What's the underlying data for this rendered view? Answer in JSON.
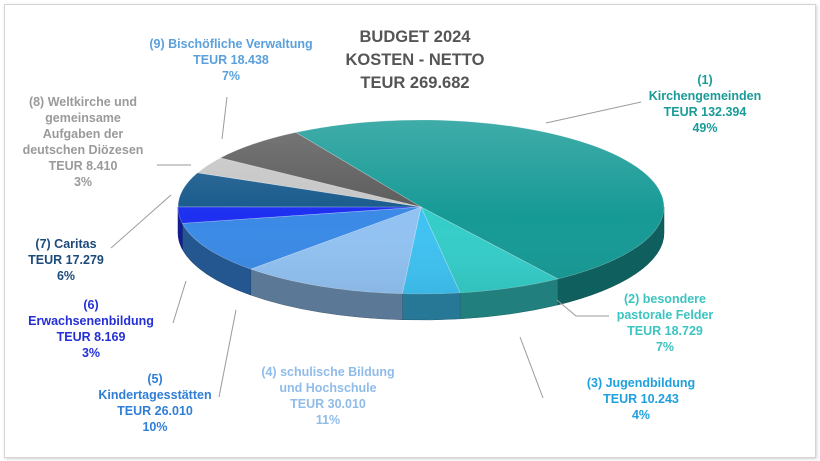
{
  "chart_data": {
    "type": "pie",
    "title_lines": [
      "BUDGET 2024",
      "KOSTEN - NETTO",
      "TEUR  269.682"
    ],
    "slices": [
      {
        "name": "(1)\nKirchengemeinden",
        "value_text": "TEUR  132.394",
        "value": 132394,
        "percent": "49%",
        "color": "#169a96",
        "label_color": "#1a9b98"
      },
      {
        "name": "(2) besondere\npastorale Felder",
        "value_text": "TEUR  18.729",
        "value": 18729,
        "percent": "7%",
        "color": "#35cdc9",
        "label_color": "#3cc4c1"
      },
      {
        "name": "(3) Jugendbildung",
        "value_text": "TEUR  10.243",
        "value": 10243,
        "percent": "4%",
        "color": "#3fc2f2",
        "label_color": "#1fa0de"
      },
      {
        "name": "(4) schulische Bildung\nund Hochschule",
        "value_text": "TEUR  30.010",
        "value": 30010,
        "percent": "11%",
        "color": "#92c2f2",
        "label_color": "#8fbce9"
      },
      {
        "name": "(5)\nKindertagesstätten",
        "value_text": "TEUR  26.010",
        "value": 26010,
        "percent": "10%",
        "color": "#3a8ae6",
        "label_color": "#2f7fd8"
      },
      {
        "name": "(6)\nErwachsenenbildung",
        "value_text": "TEUR  8.169",
        "value": 8169,
        "percent": "3%",
        "color": "#1d2ff0",
        "label_color": "#2430d6"
      },
      {
        "name": "(7) Caritas",
        "value_text": "TEUR  17.279",
        "value": 17279,
        "percent": "6%",
        "color": "#175a8c",
        "label_color": "#1c4a7a"
      },
      {
        "name": "(8) Weltkirche und\ngemeinsame\nAufgaben der\ndeutschen Diözesen",
        "value_text": "TEUR  8.410",
        "value": 8410,
        "percent": "3%",
        "color": "#c6c6c6",
        "label_color": "#9a9a9a"
      },
      {
        "name": "(9) Bischöfliche Verwaltung",
        "value_text": "TEUR  18.438",
        "value": 18438,
        "percent": "7%",
        "color": "#5b5b5b",
        "label_color": "#5aa0dc"
      }
    ]
  }
}
